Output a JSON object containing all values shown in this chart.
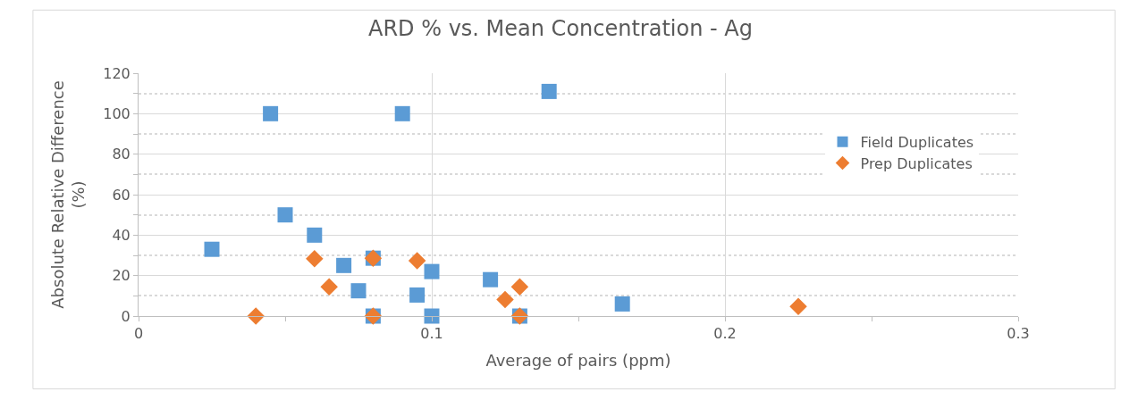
{
  "chart_data": {
    "type": "scatter",
    "title": "ARD % vs. Mean Concentration - Ag",
    "xlabel": "Average of pairs (ppm)",
    "ylabel": "Absolute Relative Difference\n(%)",
    "series": [
      {
        "name": "Field Duplicates",
        "color": "#5b9bd5",
        "marker": "square",
        "x": [
          0.045,
          0.09,
          0.14,
          0.05,
          0.06,
          0.025,
          0.07,
          0.08,
          0.075,
          0.095,
          0.1,
          0.12,
          0.08,
          0.1,
          0.13,
          0.165
        ],
        "values": [
          100,
          100,
          111,
          50,
          40,
          33,
          25,
          28.6,
          12.5,
          10.4,
          22,
          18,
          0,
          0,
          0,
          6
        ]
      },
      {
        "name": "Prep Duplicates",
        "color": "#ed7d31",
        "marker": "diamond",
        "x": [
          0.04,
          0.06,
          0.065,
          0.08,
          0.08,
          0.095,
          0.13,
          0.125,
          0.13,
          0.225
        ],
        "values": [
          0,
          28.3,
          14.4,
          28.6,
          0,
          27.3,
          14.4,
          8.2,
          0,
          4.7
        ]
      }
    ],
    "xlim": [
      0,
      0.3
    ],
    "xticks": [
      0,
      {
        "value": 0.05,
        "label": null
      },
      0.1,
      {
        "value": 0.15,
        "label": null
      },
      0.2,
      {
        "value": 0.25,
        "label": null
      },
      0.3
    ],
    "ylim": [
      0,
      120
    ],
    "yticks": [
      0,
      {
        "value": 10,
        "label": null
      },
      20,
      {
        "value": 30,
        "label": null
      },
      40,
      {
        "value": 50,
        "label": null
      },
      60,
      {
        "value": 70,
        "label": null
      },
      80,
      {
        "value": 90,
        "label": null
      },
      100,
      {
        "value": 110,
        "label": null
      },
      120
    ],
    "grid": true,
    "legend": "right"
  }
}
